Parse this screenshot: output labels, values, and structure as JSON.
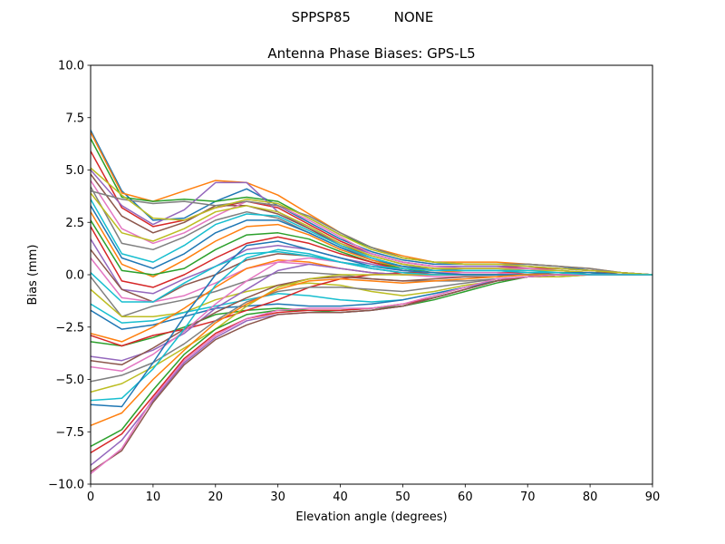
{
  "suptitle": "SPPSP85          NONE",
  "chart_data": {
    "type": "line",
    "title": "Antenna Phase Biases: GPS-L5",
    "xlabel": "Elevation angle (degrees)",
    "ylabel": "Bias (mm)",
    "xlim": [
      0,
      90
    ],
    "ylim": [
      -10,
      10
    ],
    "grid": false,
    "legend": "none",
    "xticks": [
      "0",
      "10",
      "20",
      "30",
      "40",
      "50",
      "60",
      "70",
      "80",
      "90"
    ],
    "yticks": [
      "−10.0",
      "−7.5",
      "−5.0",
      "−2.5",
      "0.0",
      "2.5",
      "5.0",
      "7.5",
      "10.0"
    ],
    "xtick_values": [
      0,
      10,
      20,
      30,
      40,
      50,
      60,
      70,
      80,
      90
    ],
    "ytick_values": [
      -10,
      -7.5,
      -5,
      -2.5,
      0,
      2.5,
      5,
      7.5,
      10
    ],
    "colors": [
      "#1f77b4",
      "#ff7f0e",
      "#2ca02c",
      "#d62728",
      "#9467bd",
      "#8c564b",
      "#e377c2",
      "#7f7f7f",
      "#bcbd22",
      "#17becf"
    ],
    "x": [
      0,
      5,
      10,
      15,
      20,
      25,
      30,
      35,
      40,
      45,
      50,
      55,
      60,
      65,
      70,
      75,
      80,
      85,
      90
    ],
    "series": [
      {
        "values": [
          6.9,
          4.0,
          2.6,
          2.7,
          3.5,
          4.1,
          3.3,
          2.5,
          1.7,
          1.1,
          0.7,
          0.5,
          0.5,
          0.5,
          0.5,
          0.4,
          0.2,
          0.1,
          0
        ]
      },
      {
        "values": [
          6.8,
          3.9,
          3.5,
          4.0,
          4.5,
          4.4,
          3.8,
          2.9,
          2.0,
          1.3,
          0.9,
          0.6,
          0.6,
          0.6,
          0.5,
          0.4,
          0.3,
          0.1,
          0
        ]
      },
      {
        "values": [
          6.5,
          3.7,
          3.5,
          3.6,
          3.5,
          3.7,
          3.5,
          2.7,
          1.9,
          1.3,
          0.8,
          0.6,
          0.5,
          0.5,
          0.4,
          0.3,
          0.2,
          0.1,
          0
        ]
      },
      {
        "values": [
          5.9,
          3.2,
          2.3,
          2.6,
          3.2,
          3.5,
          3.2,
          2.4,
          1.6,
          1.0,
          0.6,
          0.4,
          0.4,
          0.4,
          0.3,
          0.3,
          0.2,
          0.1,
          0
        ]
      },
      {
        "values": [
          5.0,
          3.3,
          2.4,
          3.1,
          4.4,
          4.4,
          3.0,
          2.2,
          1.5,
          1.0,
          0.6,
          0.4,
          0.4,
          0.4,
          0.4,
          0.3,
          0.2,
          0.1,
          0
        ]
      },
      {
        "values": [
          4.8,
          2.8,
          2.0,
          2.5,
          3.3,
          3.3,
          2.9,
          2.2,
          1.4,
          0.9,
          0.5,
          0.3,
          0.3,
          0.3,
          0.3,
          0.2,
          0.1,
          0.1,
          0
        ]
      },
      {
        "values": [
          4.5,
          2.2,
          1.5,
          2.0,
          2.8,
          3.5,
          3.3,
          2.6,
          1.8,
          1.0,
          0.6,
          0.4,
          0.3,
          0.3,
          0.3,
          0.2,
          0.1,
          0,
          0
        ]
      },
      {
        "values": [
          4.2,
          1.5,
          1.2,
          1.8,
          2.6,
          3.0,
          2.7,
          2.0,
          1.3,
          0.8,
          0.4,
          0.3,
          0.2,
          0.2,
          0.2,
          0.2,
          0.1,
          0,
          0
        ]
      },
      {
        "values": [
          3.9,
          2.0,
          1.6,
          2.2,
          3.0,
          3.3,
          3.0,
          2.3,
          1.5,
          0.9,
          0.5,
          0.3,
          0.3,
          0.3,
          0.2,
          0.2,
          0.1,
          0,
          0
        ]
      },
      {
        "values": [
          3.6,
          1.0,
          0.6,
          1.4,
          2.4,
          2.9,
          2.8,
          2.1,
          1.4,
          0.8,
          0.4,
          0.2,
          0.2,
          0.2,
          0.2,
          0.1,
          0.1,
          0,
          0
        ]
      },
      {
        "values": [
          3.3,
          0.8,
          0.3,
          1.0,
          2.0,
          2.6,
          2.6,
          2.0,
          1.3,
          0.7,
          0.4,
          0.2,
          0.2,
          0.2,
          0.1,
          0.1,
          0.1,
          0,
          0
        ]
      },
      {
        "values": [
          3.0,
          0.5,
          -0.1,
          0.7,
          1.6,
          2.3,
          2.4,
          1.9,
          1.2,
          0.7,
          0.3,
          0.2,
          0.1,
          0.1,
          0.1,
          0.1,
          0,
          0,
          0
        ]
      },
      {
        "values": [
          2.6,
          0.2,
          0.0,
          0.3,
          1.2,
          1.9,
          2.0,
          1.7,
          1.1,
          0.6,
          0.3,
          0.1,
          0.1,
          0.1,
          0.1,
          0.1,
          0,
          0,
          0
        ]
      },
      {
        "values": [
          2.3,
          -0.3,
          -0.6,
          0.0,
          0.8,
          1.5,
          1.8,
          1.5,
          1.0,
          0.6,
          0.2,
          0.1,
          0.1,
          0.1,
          0.1,
          0,
          0,
          0,
          0
        ]
      },
      {
        "values": [
          1.7,
          -0.7,
          -0.9,
          -0.2,
          0.4,
          1.2,
          1.4,
          1.2,
          0.8,
          0.5,
          0.2,
          0.1,
          0,
          0,
          0,
          0,
          0,
          0,
          0
        ]
      },
      {
        "values": [
          1.2,
          -0.7,
          -1.3,
          -0.5,
          0.0,
          0.7,
          1.0,
          0.9,
          0.6,
          0.3,
          0.1,
          0,
          0,
          0,
          0,
          0,
          0,
          0,
          0
        ]
      },
      {
        "values": [
          0.8,
          -1.1,
          -1.3,
          -1.0,
          -0.4,
          0.3,
          0.6,
          0.5,
          0.3,
          0.1,
          0,
          -0.1,
          -0.1,
          -0.1,
          0,
          0,
          0,
          0,
          0
        ]
      },
      {
        "values": [
          -0.1,
          -2.0,
          -1.5,
          -1.2,
          -0.8,
          -0.3,
          0.1,
          0.1,
          0,
          -0.2,
          -0.3,
          -0.3,
          -0.3,
          -0.2,
          -0.1,
          -0.1,
          0,
          0,
          0
        ]
      },
      {
        "values": [
          -0.7,
          -2.0,
          -2.0,
          -1.8,
          -1.2,
          -0.8,
          -0.5,
          -0.4,
          -0.5,
          -0.8,
          -1.0,
          -0.8,
          -0.5,
          -0.3,
          -0.1,
          -0.1,
          0,
          0,
          0
        ]
      },
      {
        "values": [
          -1.4,
          -2.3,
          -2.2,
          -1.8,
          -1.5,
          -1.2,
          -0.9,
          -1.0,
          -1.2,
          -1.3,
          -1.2,
          -0.9,
          -0.6,
          -0.3,
          -0.1,
          0,
          0,
          0,
          0
        ]
      },
      {
        "values": [
          -1.7,
          -2.6,
          -2.4,
          -2.0,
          -1.6,
          -1.5,
          -1.4,
          -1.5,
          -1.5,
          -1.4,
          -1.2,
          -0.9,
          -0.6,
          -0.3,
          -0.1,
          0,
          0,
          0,
          0
        ]
      },
      {
        "values": [
          -2.8,
          -3.2,
          -2.5,
          -1.6,
          -0.6,
          0.3,
          0.7,
          0.6,
          0.3,
          0.1,
          0,
          0,
          0,
          0,
          0,
          0,
          0,
          0,
          0
        ]
      },
      {
        "values": [
          -3.2,
          -3.4,
          -3.0,
          -2.5,
          -1.9,
          -1.7,
          -1.6,
          -1.7,
          -1.7,
          -1.6,
          -1.5,
          -1.2,
          -0.8,
          -0.4,
          -0.1,
          0,
          0,
          0,
          0
        ]
      },
      {
        "values": [
          -2.9,
          -3.4,
          -2.9,
          -2.6,
          -2.2,
          -1.7,
          -1.2,
          -0.6,
          -0.2,
          0,
          0.1,
          0.1,
          0.1,
          0.1,
          0,
          0,
          0,
          0,
          0
        ]
      },
      {
        "values": [
          -3.9,
          -4.1,
          -3.6,
          -2.8,
          -1.6,
          -0.7,
          0.2,
          0.5,
          0.3,
          0.1,
          0,
          0,
          0,
          0,
          0,
          0,
          0,
          0,
          0
        ]
      },
      {
        "values": [
          -4.1,
          -4.3,
          -3.5,
          -2.6,
          -1.8,
          -1.1,
          -0.5,
          -0.2,
          -0.1,
          -0.2,
          -0.3,
          -0.2,
          -0.1,
          -0.1,
          0,
          0,
          0,
          0,
          0
        ]
      },
      {
        "values": [
          -4.4,
          -4.6,
          -3.8,
          -2.7,
          -1.4,
          -0.3,
          0.6,
          0.8,
          0.6,
          0.4,
          0.2,
          0.1,
          0.1,
          0.1,
          0,
          0,
          0,
          0,
          0
        ]
      },
      {
        "values": [
          -5.1,
          -4.8,
          -4.2,
          -3.3,
          -2.2,
          -1.3,
          -0.8,
          -0.6,
          -0.6,
          -0.7,
          -0.8,
          -0.6,
          -0.4,
          -0.2,
          -0.1,
          0,
          0,
          0,
          0
        ]
      },
      {
        "values": [
          -5.6,
          -5.2,
          -4.4,
          -3.5,
          -2.6,
          -1.5,
          -0.6,
          -0.2,
          0,
          0,
          0,
          0,
          0,
          0,
          0,
          0,
          0,
          0,
          0
        ]
      },
      {
        "values": [
          -6.0,
          -5.9,
          -4.5,
          -2.6,
          -0.5,
          0.8,
          1.2,
          1.0,
          0.6,
          0.3,
          0.1,
          0,
          0,
          0,
          0,
          0,
          0,
          0,
          0
        ]
      },
      {
        "values": [
          -6.2,
          -6.3,
          -4.2,
          -2.0,
          0.0,
          1.4,
          1.6,
          1.2,
          0.8,
          0.4,
          0.2,
          0.1,
          0,
          0,
          0,
          0,
          0,
          0,
          0
        ]
      },
      {
        "values": [
          -7.2,
          -6.6,
          -5.0,
          -3.6,
          -2.3,
          -1.4,
          -0.7,
          -0.3,
          -0.2,
          -0.3,
          -0.4,
          -0.3,
          -0.2,
          -0.1,
          0,
          0,
          0,
          0,
          0
        ]
      },
      {
        "values": [
          -8.2,
          -7.4,
          -5.5,
          -3.8,
          -2.6,
          -1.9,
          -1.7,
          -1.7,
          -1.8,
          -1.7,
          -1.5,
          -1.1,
          -0.7,
          -0.3,
          -0.1,
          0,
          0,
          0,
          0
        ]
      },
      {
        "values": [
          -8.5,
          -7.6,
          -5.8,
          -4.0,
          -2.8,
          -2.1,
          -1.8,
          -1.7,
          -1.7,
          -1.6,
          -1.4,
          -1.1,
          -0.7,
          -0.3,
          -0.1,
          0,
          0,
          0,
          0
        ]
      },
      {
        "values": [
          -9.1,
          -7.9,
          -6.0,
          -4.2,
          -3.0,
          -2.2,
          -1.9,
          -1.8,
          -1.8,
          -1.7,
          -1.5,
          -1.1,
          -0.7,
          -0.3,
          -0.1,
          0,
          0,
          0,
          0
        ]
      },
      {
        "values": [
          -9.4,
          -8.4,
          -6.1,
          -4.3,
          -3.1,
          -2.4,
          -1.9,
          -1.8,
          -1.8,
          -1.7,
          -1.5,
          -1.1,
          -0.7,
          -0.3,
          -0.1,
          0,
          0,
          0,
          0
        ]
      },
      {
        "values": [
          -9.5,
          -8.3,
          -5.9,
          -4.1,
          -2.9,
          -2.1,
          -1.7,
          -1.6,
          -1.6,
          -1.6,
          -1.4,
          -1.0,
          -0.6,
          -0.2,
          -0.1,
          0,
          0,
          0,
          0
        ]
      },
      {
        "values": [
          4.0,
          3.6,
          3.4,
          3.5,
          3.3,
          3.5,
          3.3,
          2.8,
          2.0,
          1.3,
          0.8,
          0.6,
          0.5,
          0.5,
          0.5,
          0.4,
          0.3,
          0.1,
          0
        ]
      },
      {
        "values": [
          5.1,
          3.8,
          2.7,
          2.6,
          3.2,
          3.6,
          3.4,
          2.7,
          1.9,
          1.2,
          0.8,
          0.6,
          0.5,
          0.5,
          0.4,
          0.3,
          0.2,
          0.1,
          0
        ]
      },
      {
        "values": [
          0.1,
          -1.3,
          -1.3,
          -0.4,
          0.4,
          1.0,
          1.1,
          0.9,
          0.6,
          0.4,
          0.3,
          0.2,
          0.2,
          0.2,
          0.1,
          0.1,
          0,
          0,
          0
        ]
      }
    ]
  }
}
